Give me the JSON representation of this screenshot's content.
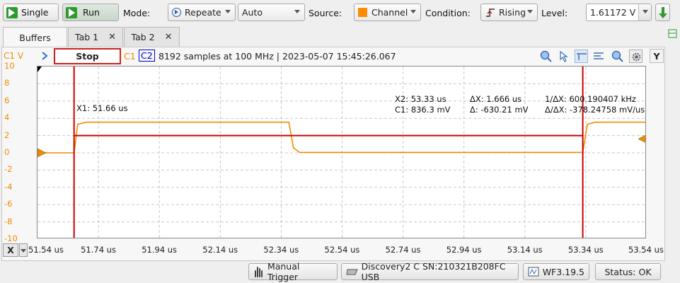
{
  "toolbar": {
    "single_label": "Single",
    "run_label": "Run",
    "mode_label": "Mode:",
    "mode_value": "Repeate",
    "auto_value": "Auto",
    "source_label": "Source:",
    "source_value": "Channel",
    "condition_label": "Condition:",
    "condition_value": "Rising",
    "level_label": "Level:",
    "level_value": "1.61172 V",
    "source_color": "#ff8c00"
  },
  "tabs": [
    {
      "label": "Buffers"
    },
    {
      "label": "Tab 1",
      "close": "✕"
    },
    {
      "label": "Tab 2",
      "close": "✕"
    }
  ],
  "scope": {
    "channel_axis_label": "C1 V",
    "state": "Stop",
    "c1_label": "C1",
    "c2_label": "C2",
    "info": "8192 samples at 100 MHz | 2023-05-07 15:45:26.067",
    "y_label": "Y",
    "y_ticks": [
      "10",
      "8",
      "6",
      "4",
      "2",
      "0",
      "-2",
      "-4",
      "-6",
      "-8",
      "-10"
    ],
    "x_ticks": [
      "51.54 us",
      "51.74 us",
      "51.94 us",
      "52.14 us",
      "52.34 us",
      "52.54 us",
      "52.74 us",
      "52.94 us",
      "53.14 us",
      "53.34 us",
      "53.54 us"
    ],
    "x_axis_button": "X",
    "c1_color": "#f08c00",
    "c2_color": "#0000cc",
    "cursor_color": "#cc0000"
  },
  "cursors": {
    "x1": "X1: 51.66 us",
    "x2": "X2: 53.33 us",
    "c1": "C1: 836.3 mV",
    "dx": "ΔX: 1.666 us",
    "dv": "Δ: -630.21 mV",
    "inv_dx": "1/ΔX: 600.190407 kHz",
    "dv_dx": "Δ/ΔX: -378.24758 mV/us"
  },
  "chart_data": {
    "type": "line",
    "xlabel": "",
    "ylabel": "C1 V",
    "xlim": [
      51.54,
      53.54
    ],
    "ylim": [
      -10,
      10
    ],
    "series": [
      {
        "x": [
          51.54,
          51.66,
          51.672,
          51.7,
          52.365,
          52.38,
          52.4,
          53.33,
          53.345,
          53.37,
          53.54
        ],
        "values": [
          0.0,
          0.0,
          3.3,
          3.55,
          3.55,
          0.6,
          0.05,
          0.05,
          3.3,
          3.55,
          3.55
        ]
      }
    ],
    "cursor_x": [
      51.66,
      53.33
    ],
    "cursor_level": 2.0,
    "trigger_level": 1.61172
  },
  "statusbar": {
    "manual_trigger": "Manual Trigger",
    "device": "Discovery2 C SN:210321B208FC USB",
    "version": "WF3.19.5",
    "status": "Status: OK"
  }
}
